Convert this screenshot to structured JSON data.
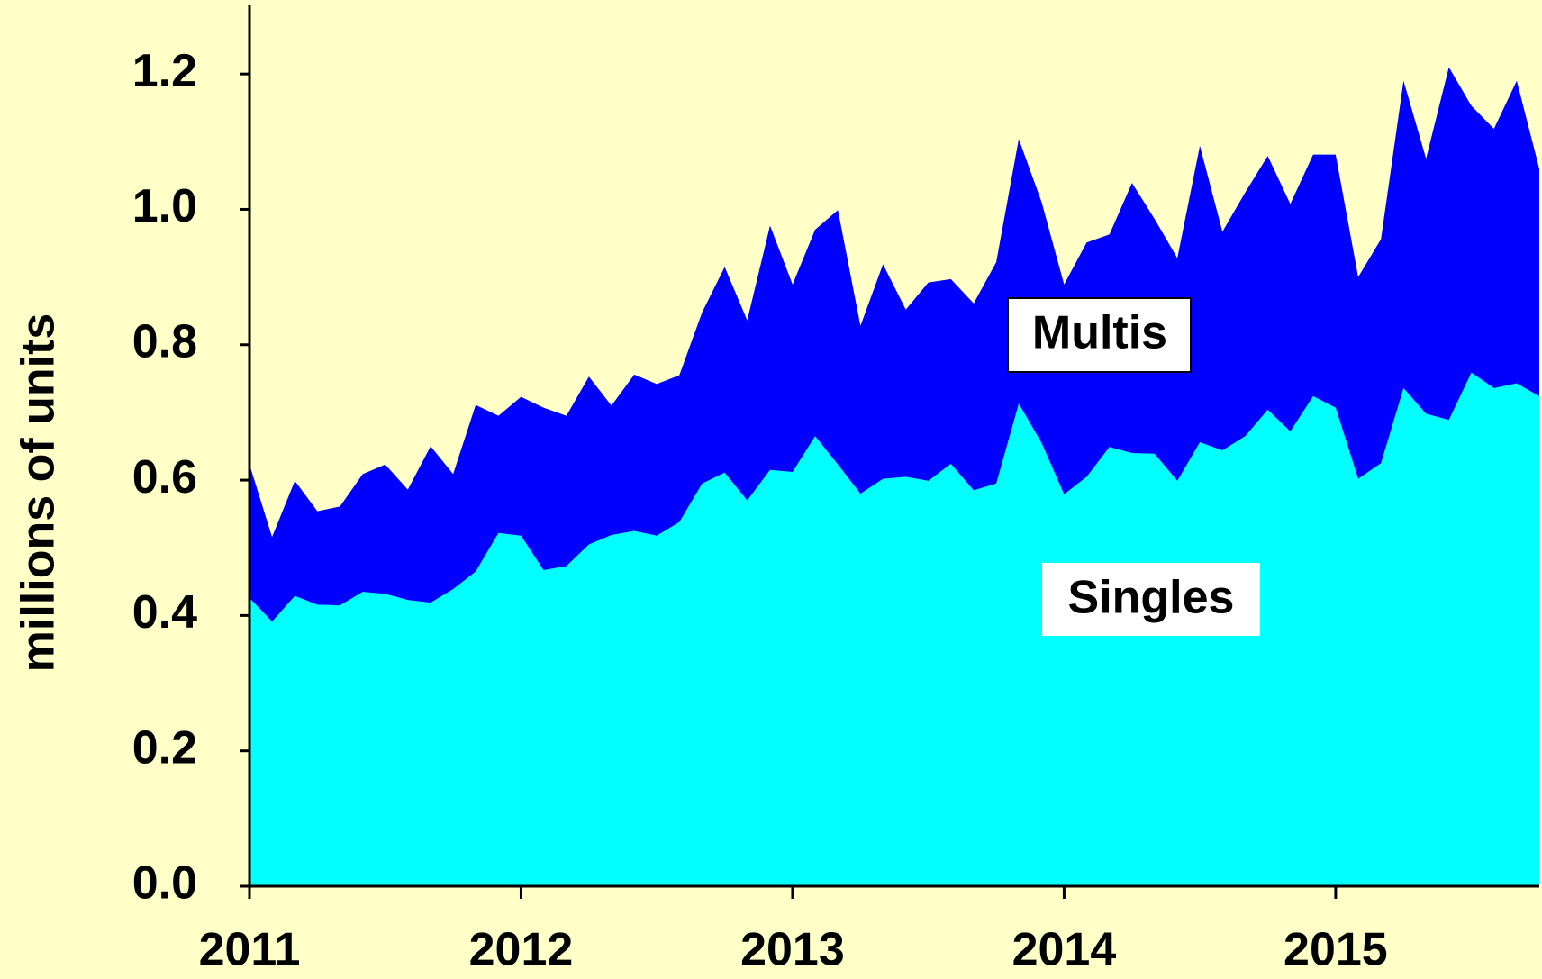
{
  "chart_data": {
    "type": "stacked_area",
    "y_label": "millions of units",
    "x": [
      2011,
      2011.083,
      2011.167,
      2011.25,
      2011.333,
      2011.417,
      2011.5,
      2011.583,
      2011.667,
      2011.75,
      2011.833,
      2011.917,
      2012,
      2012.083,
      2012.167,
      2012.25,
      2012.333,
      2012.417,
      2012.5,
      2012.583,
      2012.667,
      2012.75,
      2012.833,
      2012.917,
      2013,
      2013.083,
      2013.167,
      2013.25,
      2013.333,
      2013.417,
      2013.5,
      2013.583,
      2013.667,
      2013.75,
      2013.833,
      2013.917,
      2014,
      2014.083,
      2014.167,
      2014.25,
      2014.333,
      2014.417,
      2014.5,
      2014.583,
      2014.667,
      2014.75,
      2014.833,
      2014.917,
      2015,
      2015.083,
      2015.167,
      2015.25,
      2015.333,
      2015.417,
      2015.5,
      2015.583,
      2015.667,
      2015.75
    ],
    "series": [
      {
        "name": "Singles",
        "color": "#00ffff",
        "values": [
          0.426,
          0.391,
          0.429,
          0.416,
          0.415,
          0.435,
          0.432,
          0.423,
          0.419,
          0.439,
          0.465,
          0.522,
          0.518,
          0.467,
          0.473,
          0.505,
          0.519,
          0.525,
          0.518,
          0.538,
          0.595,
          0.611,
          0.57,
          0.615,
          0.612,
          0.665,
          0.623,
          0.58,
          0.602,
          0.605,
          0.599,
          0.624,
          0.585,
          0.595,
          0.713,
          0.655,
          0.579,
          0.605,
          0.649,
          0.64,
          0.639,
          0.599,
          0.656,
          0.644,
          0.665,
          0.704,
          0.672,
          0.724,
          0.707,
          0.602,
          0.625,
          0.736,
          0.698,
          0.689,
          0.759,
          0.736,
          0.743,
          0.724
        ]
      },
      {
        "name": "Multis",
        "color": "#0000ff",
        "values": [
          0.197,
          0.125,
          0.17,
          0.138,
          0.146,
          0.174,
          0.191,
          0.163,
          0.231,
          0.17,
          0.246,
          0.173,
          0.205,
          0.24,
          0.222,
          0.248,
          0.191,
          0.231,
          0.224,
          0.217,
          0.253,
          0.304,
          0.266,
          0.361,
          0.277,
          0.305,
          0.376,
          0.248,
          0.317,
          0.247,
          0.293,
          0.273,
          0.276,
          0.327,
          0.391,
          0.356,
          0.31,
          0.346,
          0.314,
          0.399,
          0.347,
          0.329,
          0.438,
          0.323,
          0.36,
          0.375,
          0.336,
          0.357,
          0.374,
          0.298,
          0.331,
          0.454,
          0.377,
          0.521,
          0.394,
          0.383,
          0.447,
          0.336
        ]
      }
    ],
    "xlim": [
      2011,
      2015.75
    ],
    "xticks": [
      2011,
      2012,
      2013,
      2014,
      2015
    ],
    "ylim": [
      0,
      1.3
    ],
    "yticks": [
      {
        "value": 0,
        "label": "0.0"
      },
      0.2,
      0.4,
      0.6,
      0.8,
      {
        "value": 1,
        "label": "1.0"
      },
      1.2
    ],
    "background": "#ffffc8"
  }
}
